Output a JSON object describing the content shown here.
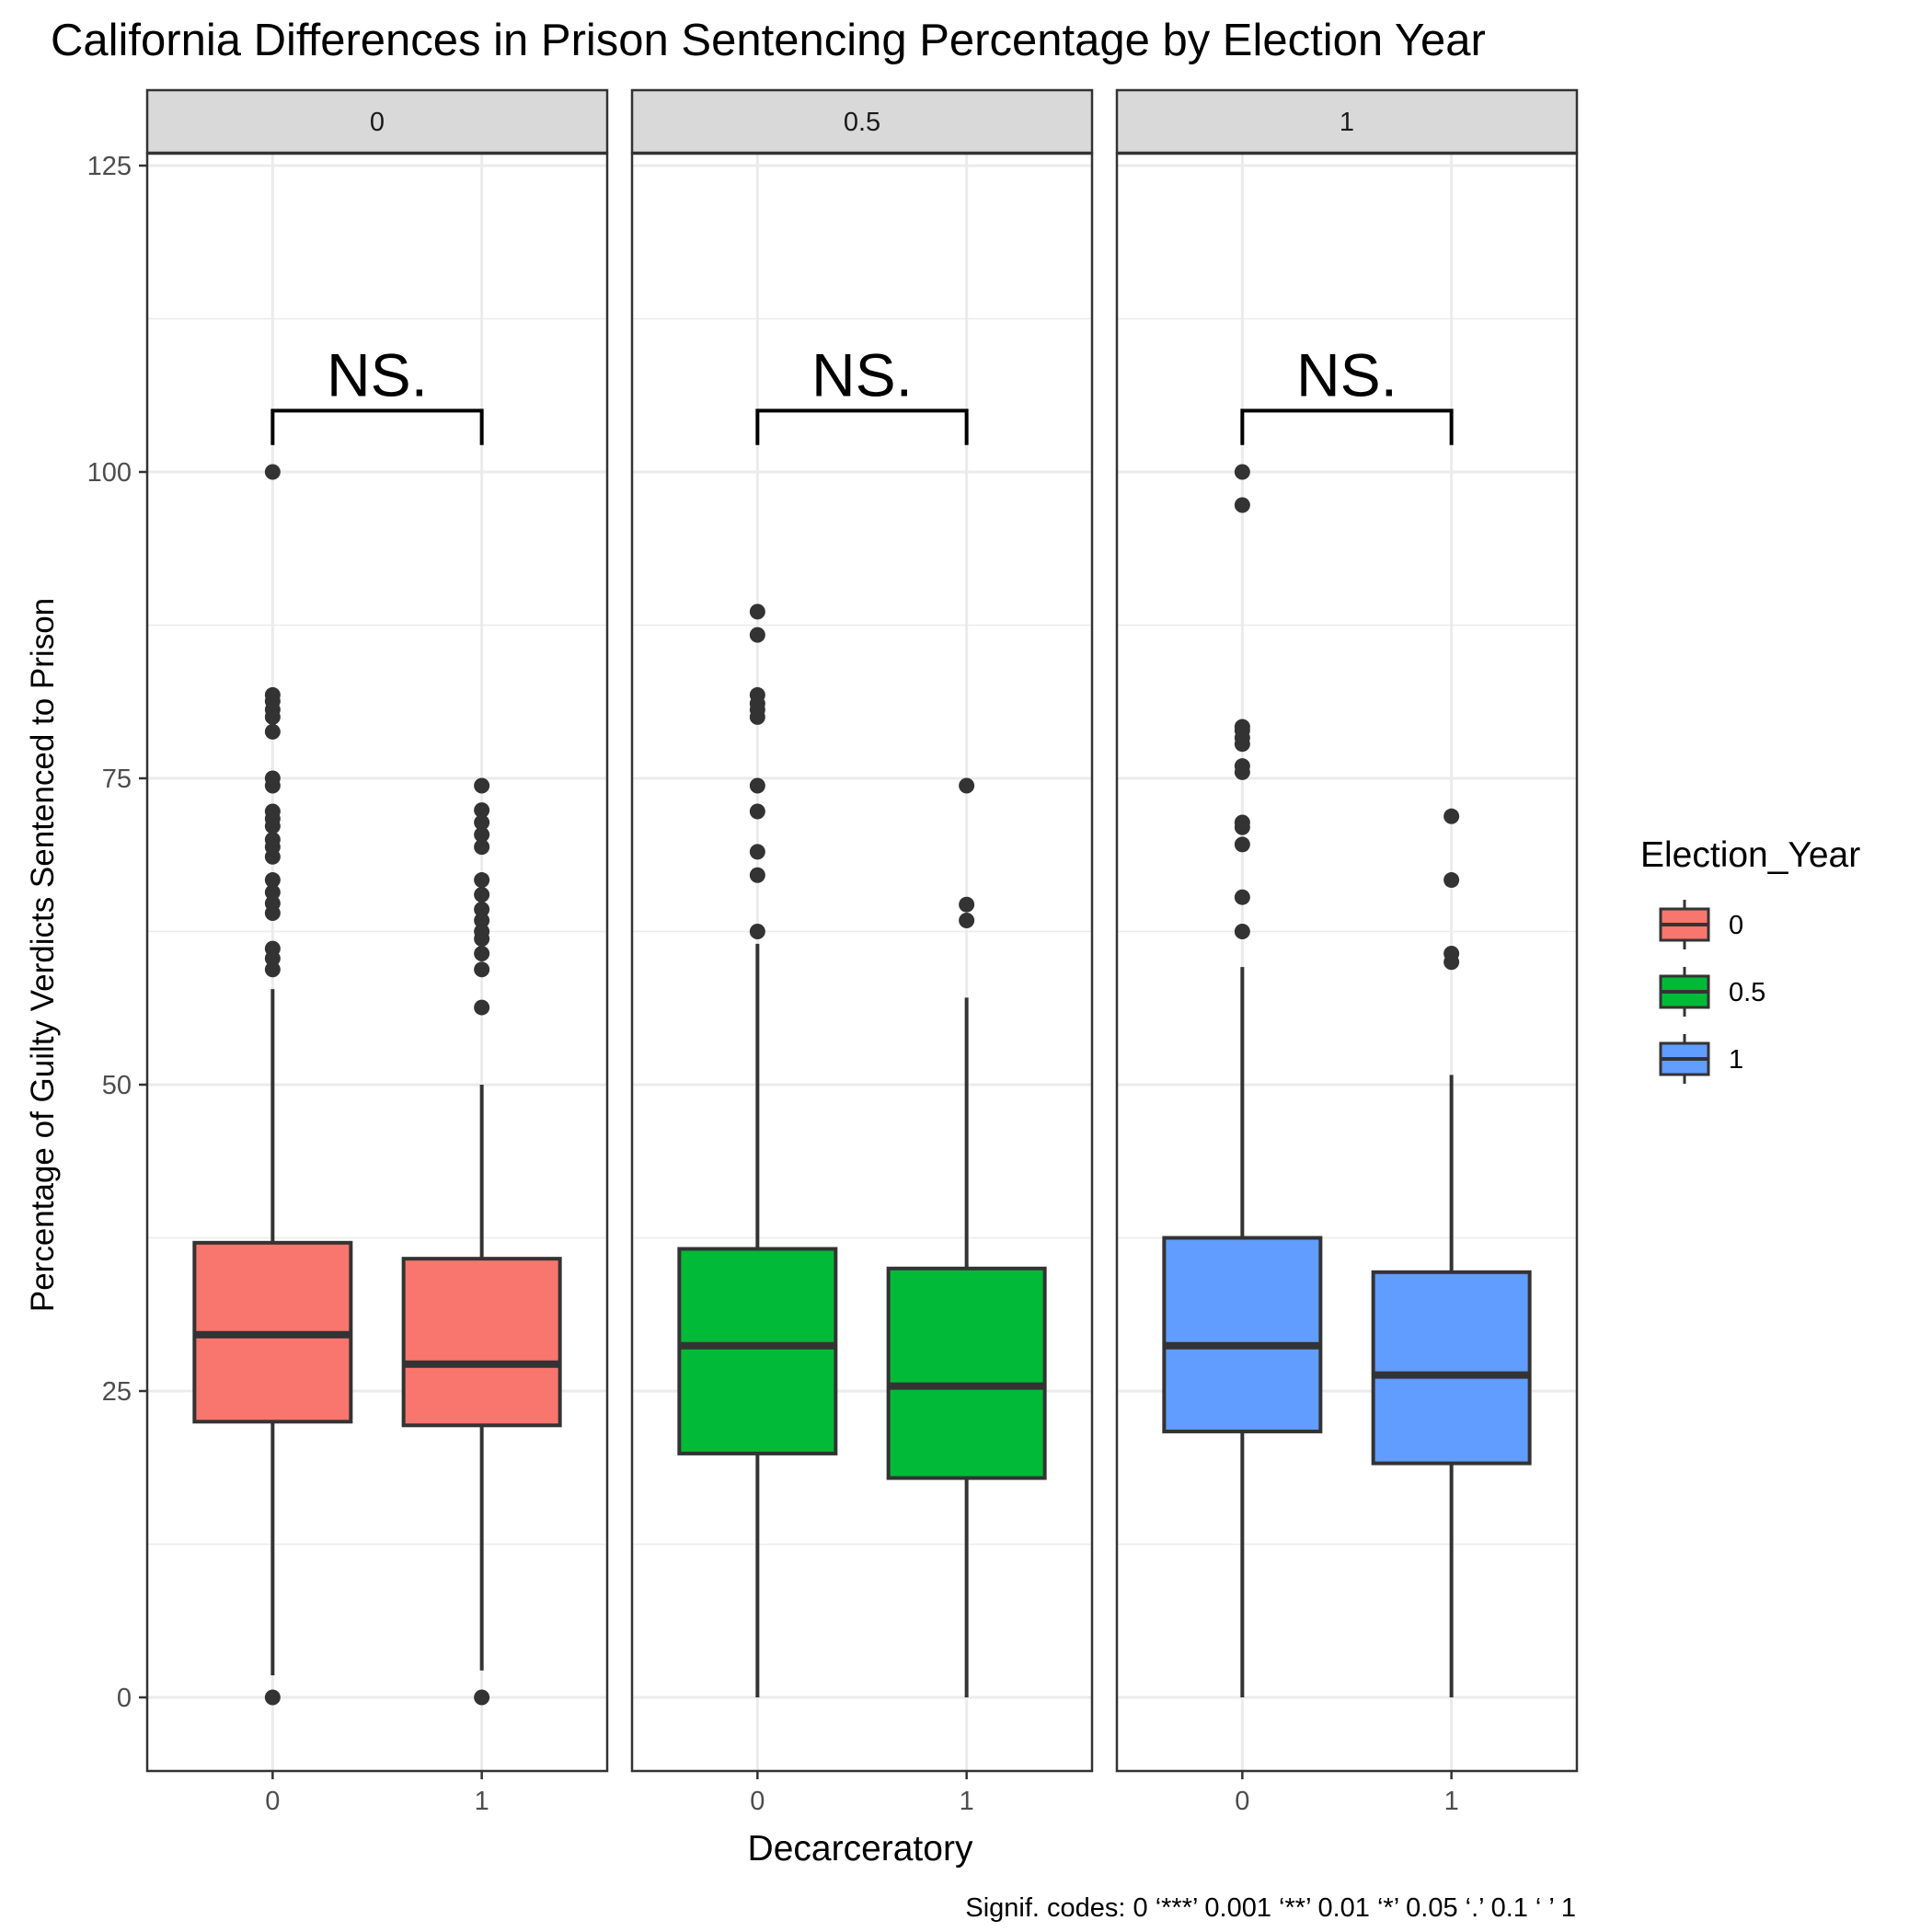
{
  "chart_data": {
    "type": "boxplot",
    "title": "California Differences in Prison Sentencing Percentage by Election Year",
    "xlabel": "Decarceratory",
    "ylabel": "Percentage of Guilty Verdicts Sentenced to Prison",
    "ylim": [
      -5,
      126
    ],
    "yticks": [
      0,
      25,
      50,
      75,
      100,
      125
    ],
    "x_categories": [
      "0",
      "1"
    ],
    "grid": true,
    "legend": {
      "title": "Election_Year",
      "position": "right",
      "entries": [
        {
          "label": "0",
          "color": "#F8766D"
        },
        {
          "label": "0.5",
          "color": "#00BA38"
        },
        {
          "label": "1",
          "color": "#619CFF"
        }
      ]
    },
    "caption": "Signif. codes:  0 ‘***’ 0.001 ‘**’ 0.01 ‘*’ 0.05 ‘.’ 0.1 ‘ ’ 1",
    "panels": [
      {
        "label": "0",
        "color": "#F8766D",
        "significance": "NS.",
        "boxes": [
          {
            "x": "0",
            "whisker_low": 1.8,
            "q1": 22.5,
            "median": 29.6,
            "q3": 37.1,
            "whisker_high": 57.8,
            "outliers": [
              0,
              59.4,
              60.3,
              61.1,
              64.0,
              64.8,
              65.7,
              66.7,
              68.6,
              69.4,
              70.0,
              71.1,
              71.7,
              72.3,
              74.4,
              75.0,
              78.8,
              80.0,
              80.6,
              81.3,
              81.8,
              100
            ]
          },
          {
            "x": "1",
            "whisker_low": 2.2,
            "q1": 22.2,
            "median": 27.2,
            "q3": 35.8,
            "whisker_high": 50.0,
            "outliers": [
              0,
              56.3,
              59.4,
              60.7,
              61.9,
              62.5,
              63.4,
              64.3,
              65.5,
              66.7,
              69.4,
              70.4,
              71.4,
              72.4,
              74.4
            ]
          }
        ]
      },
      {
        "label": "0.5",
        "color": "#00BA38",
        "significance": "NS.",
        "boxes": [
          {
            "x": "0",
            "whisker_low": 0,
            "q1": 19.9,
            "median": 28.7,
            "q3": 36.6,
            "whisker_high": 61.5,
            "outliers": [
              62.5,
              67.1,
              69.0,
              72.3,
              74.4,
              80.0,
              80.6,
              81.1,
              81.8,
              86.7,
              88.6
            ]
          },
          {
            "x": "1",
            "whisker_low": 0,
            "q1": 17.9,
            "median": 25.4,
            "q3": 35.0,
            "whisker_high": 57.1,
            "outliers": [
              63.4,
              64.7,
              74.4
            ]
          }
        ]
      },
      {
        "label": "1",
        "color": "#619CFF",
        "significance": "NS.",
        "boxes": [
          {
            "x": "0",
            "whisker_low": 0,
            "q1": 21.7,
            "median": 28.7,
            "q3": 37.5,
            "whisker_high": 59.6,
            "outliers": [
              62.5,
              65.3,
              69.6,
              71.0,
              71.4,
              75.5,
              76.0,
              77.8,
              78.3,
              78.9,
              79.2,
              97.3,
              100
            ]
          },
          {
            "x": "1",
            "whisker_low": 0,
            "q1": 19.1,
            "median": 26.3,
            "q3": 34.7,
            "whisker_high": 50.8,
            "outliers": [
              60.0,
              60.7,
              66.7,
              71.9
            ]
          }
        ]
      }
    ]
  }
}
